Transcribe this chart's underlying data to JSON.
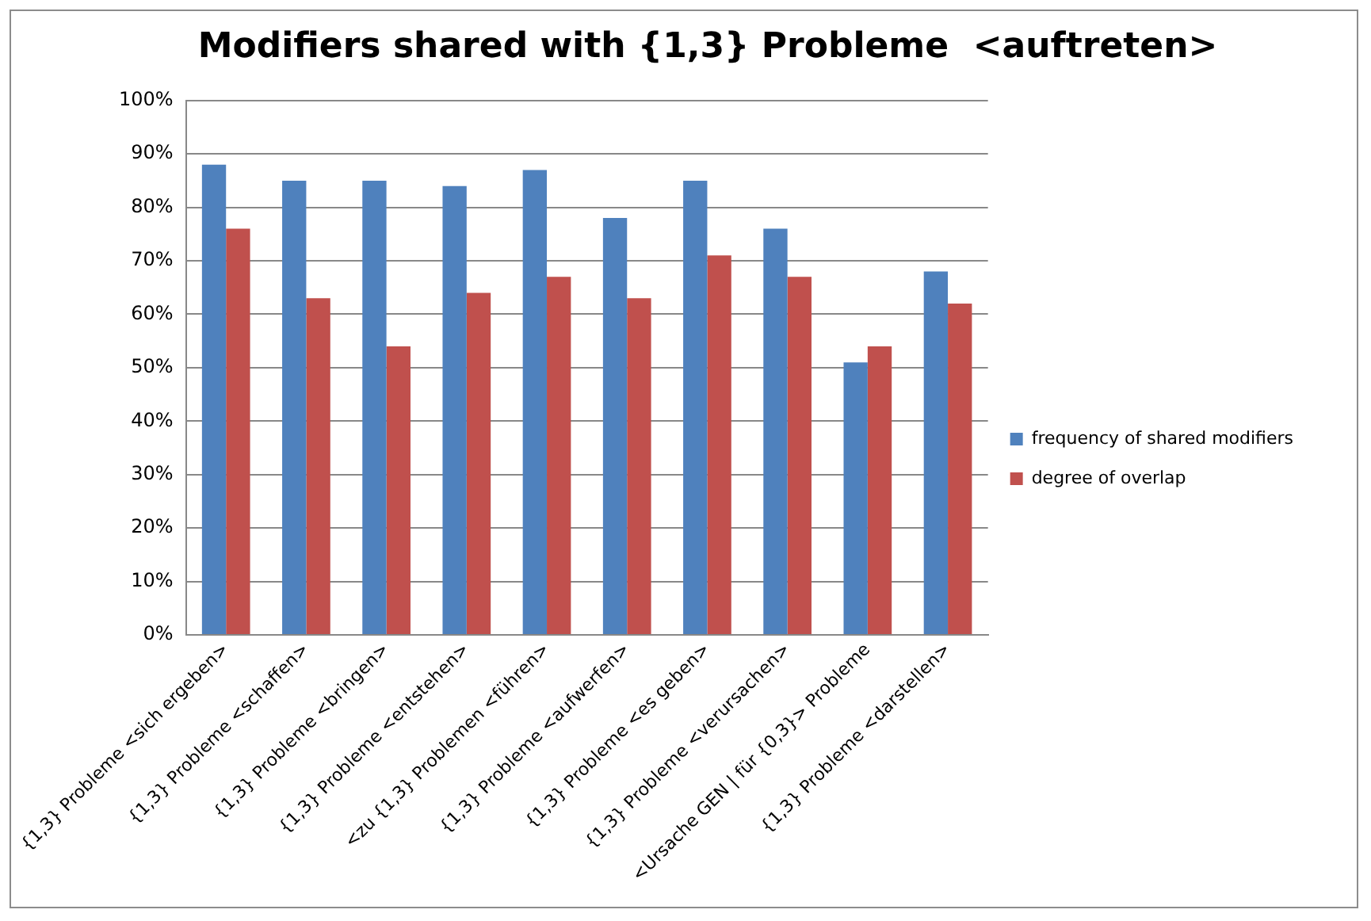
{
  "chart_data": {
    "type": "bar",
    "title": "Modifiers shared with {1,3} Probleme  <auftreten>",
    "categories": [
      "{1,3} Probleme <sich ergeben>",
      "{1,3} Probleme <schaffen>",
      "{1,3} Probleme <bringen>",
      "{1,3} Probleme <entstehen>",
      "<zu {1,3} Problemen <führen>",
      "{1,3} Probleme <aufwerfen>",
      "{1,3} Probleme <es geben>",
      "{1,3} Probleme <verursachen>",
      "<Ursache GEN | für {0,3}> Probleme",
      "{1,3} Probleme <darstellen>"
    ],
    "series": [
      {
        "name": "frequency of shared modifiers",
        "color": "#4f81bd",
        "values": [
          88,
          85,
          85,
          84,
          87,
          78,
          85,
          76,
          51,
          68
        ]
      },
      {
        "name": "degree of overlap",
        "color": "#c0504d",
        "values": [
          76,
          63,
          54,
          64,
          67,
          63,
          71,
          67,
          54,
          62
        ]
      }
    ],
    "ylim": [
      0,
      100
    ],
    "yticks": [
      {
        "value": 0,
        "label": "0%"
      },
      {
        "value": 10,
        "label": "10%"
      },
      {
        "value": 20,
        "label": "20%"
      },
      {
        "value": 30,
        "label": "30%"
      },
      {
        "value": 40,
        "label": "40%"
      },
      {
        "value": 50,
        "label": "50%"
      },
      {
        "value": 60,
        "label": "60%"
      },
      {
        "value": 70,
        "label": "70%"
      },
      {
        "value": 80,
        "label": "80%"
      },
      {
        "value": 90,
        "label": "90%"
      },
      {
        "value": 100,
        "label": "100%"
      }
    ],
    "grid": "y",
    "legend": "right"
  }
}
